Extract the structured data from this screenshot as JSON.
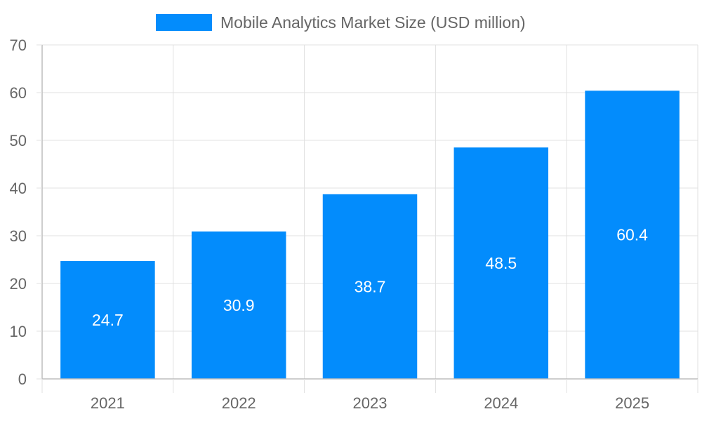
{
  "chart_data": {
    "type": "bar",
    "categories": [
      "2021",
      "2022",
      "2023",
      "2024",
      "2025"
    ],
    "series": [
      {
        "name": "Mobile Analytics Market Size (USD million)",
        "values": [
          24.7,
          30.9,
          38.7,
          48.5,
          60.4
        ],
        "color": "#038cfc"
      }
    ],
    "data_labels": [
      "24.7",
      "30.9",
      "38.7",
      "48.5",
      "60.4"
    ],
    "ylim": [
      0,
      70
    ],
    "yticks": [
      0,
      10,
      20,
      30,
      40,
      50,
      60,
      70
    ],
    "xlabel": "",
    "ylabel": "",
    "grid": true,
    "legend_position": "top-center"
  }
}
